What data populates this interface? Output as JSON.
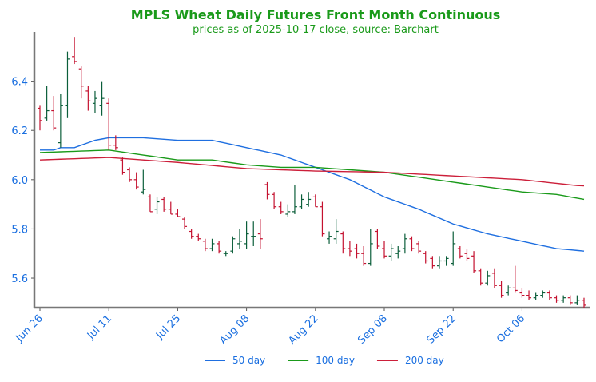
{
  "chart_data": {
    "type": "ohlc",
    "title": "MPLS Wheat Daily Futures Front Month Continuous",
    "subtitle": "prices as of 2025-10-17 close, source: Barchart",
    "title_color": "#1a9a1a",
    "categories": [
      "Jun 26",
      null,
      null,
      null,
      null,
      null,
      null,
      null,
      null,
      null,
      "Jul 11",
      null,
      null,
      null,
      null,
      null,
      null,
      null,
      null,
      null,
      "Jul 25",
      null,
      null,
      null,
      null,
      null,
      null,
      null,
      null,
      null,
      "Aug 08",
      null,
      null,
      null,
      null,
      null,
      null,
      null,
      null,
      null,
      "Aug 22",
      null,
      null,
      null,
      null,
      null,
      null,
      null,
      null,
      null,
      "Sep 08",
      null,
      null,
      null,
      null,
      null,
      null,
      null,
      null,
      null,
      "Sep 22",
      null,
      null,
      null,
      null,
      null,
      null,
      null,
      null,
      null,
      "Oct 06",
      null,
      null,
      null,
      null,
      null,
      null,
      null,
      null,
      null
    ],
    "open": [
      6.29,
      6.25,
      6.28,
      6.15,
      6.3,
      6.5,
      6.45,
      6.36,
      6.31,
      6.3,
      6.31,
      6.14,
      6.08,
      6.04,
      6.0,
      5.95,
      5.93,
      5.88,
      5.92,
      5.88,
      5.86,
      5.84,
      5.79,
      5.77,
      5.75,
      5.72,
      5.74,
      5.7,
      5.71,
      5.74,
      5.74,
      5.77,
      5.78,
      5.98,
      5.94,
      5.89,
      5.86,
      5.87,
      5.89,
      5.9,
      5.93,
      5.89,
      5.76,
      5.76,
      5.78,
      5.72,
      5.72,
      5.7,
      5.66,
      5.79,
      5.72,
      5.69,
      5.7,
      5.72,
      5.76,
      5.74,
      5.7,
      5.68,
      5.65,
      5.67,
      5.66,
      5.72,
      5.7,
      5.69,
      5.63,
      5.58,
      5.62,
      5.57,
      5.54,
      5.56,
      5.54,
      5.53,
      5.52,
      5.53,
      5.54,
      5.52,
      5.51,
      5.52,
      5.5,
      5.51
    ],
    "high": [
      6.3,
      6.38,
      6.34,
      6.35,
      6.52,
      6.58,
      6.46,
      6.38,
      6.36,
      6.4,
      6.33,
      6.18,
      6.09,
      6.05,
      6.03,
      6.04,
      5.94,
      5.93,
      5.93,
      5.91,
      5.88,
      5.85,
      5.8,
      5.78,
      5.76,
      5.76,
      5.75,
      5.71,
      5.77,
      5.8,
      5.83,
      5.83,
      5.84,
      5.99,
      5.95,
      5.91,
      5.9,
      5.98,
      5.94,
      5.95,
      5.94,
      5.91,
      5.79,
      5.84,
      5.79,
      5.75,
      5.74,
      5.73,
      5.8,
      5.8,
      5.75,
      5.74,
      5.73,
      5.78,
      5.77,
      5.75,
      5.71,
      5.69,
      5.69,
      5.69,
      5.79,
      5.73,
      5.72,
      5.71,
      5.64,
      5.63,
      5.64,
      5.59,
      5.57,
      5.65,
      5.56,
      5.55,
      5.54,
      5.55,
      5.55,
      5.53,
      5.53,
      5.53,
      5.53,
      5.52
    ],
    "low": [
      6.2,
      6.24,
      6.2,
      6.13,
      6.25,
      6.47,
      6.33,
      6.28,
      6.27,
      6.26,
      6.12,
      6.12,
      6.02,
      5.99,
      5.96,
      5.94,
      5.87,
      5.86,
      5.87,
      5.86,
      5.85,
      5.8,
      5.76,
      5.75,
      5.71,
      5.71,
      5.7,
      5.69,
      5.7,
      5.72,
      5.72,
      5.73,
      5.72,
      5.92,
      5.88,
      5.86,
      5.85,
      5.86,
      5.88,
      5.89,
      5.89,
      5.77,
      5.74,
      5.74,
      5.7,
      5.69,
      5.68,
      5.65,
      5.65,
      5.72,
      5.68,
      5.67,
      5.68,
      5.7,
      5.71,
      5.7,
      5.66,
      5.64,
      5.64,
      5.65,
      5.65,
      5.68,
      5.67,
      5.62,
      5.57,
      5.57,
      5.56,
      5.52,
      5.53,
      5.54,
      5.52,
      5.51,
      5.51,
      5.52,
      5.51,
      5.5,
      5.5,
      5.49,
      5.49,
      5.48
    ],
    "close": [
      6.24,
      6.28,
      6.21,
      6.3,
      6.49,
      6.48,
      6.38,
      6.32,
      6.33,
      6.33,
      6.14,
      6.13,
      6.03,
      6.0,
      5.97,
      5.96,
      5.87,
      5.91,
      5.88,
      5.86,
      5.85,
      5.81,
      5.77,
      5.76,
      5.72,
      5.74,
      5.71,
      5.7,
      5.76,
      5.75,
      5.78,
      5.77,
      5.76,
      5.94,
      5.89,
      5.87,
      5.87,
      5.89,
      5.92,
      5.92,
      5.89,
      5.78,
      5.77,
      5.79,
      5.72,
      5.71,
      5.7,
      5.66,
      5.74,
      5.73,
      5.69,
      5.72,
      5.71,
      5.76,
      5.72,
      5.71,
      5.67,
      5.65,
      5.67,
      5.68,
      5.74,
      5.69,
      5.68,
      5.63,
      5.58,
      5.61,
      5.57,
      5.53,
      5.56,
      5.55,
      5.53,
      5.52,
      5.53,
      5.54,
      5.52,
      5.51,
      5.52,
      5.5,
      5.51,
      5.49
    ],
    "up_color": "#0b5e3a",
    "down_color": "#c4112f",
    "series": [
      {
        "name": "50 day",
        "color": "#1f6fe0",
        "values": [
          6.12,
          6.12,
          6.12,
          6.13,
          6.13,
          6.13,
          6.14,
          6.15,
          6.16,
          6.165,
          6.17,
          6.17,
          6.17,
          6.17,
          6.17,
          6.17,
          6.168,
          6.166,
          6.164,
          6.162,
          6.16,
          6.16,
          6.16,
          6.16,
          6.16,
          6.16,
          6.154,
          6.148,
          6.142,
          6.136,
          6.13,
          6.124,
          6.118,
          6.112,
          6.106,
          6.1,
          6.09,
          6.08,
          6.07,
          6.06,
          6.05,
          6.04,
          6.03,
          6.02,
          6.01,
          6.0,
          5.986,
          5.972,
          5.958,
          5.944,
          5.93,
          5.92,
          5.91,
          5.9,
          5.89,
          5.88,
          5.868,
          5.856,
          5.844,
          5.832,
          5.82,
          5.812,
          5.804,
          5.796,
          5.788,
          5.78,
          5.774,
          5.768,
          5.762,
          5.756,
          5.75,
          5.744,
          5.738,
          5.732,
          5.726,
          5.72,
          5.7175,
          5.715,
          5.7125,
          5.71
        ]
      },
      {
        "name": "100 day",
        "color": "#1a9a1a",
        "values": [
          6.11,
          6.111,
          6.112,
          6.113,
          6.114,
          6.115,
          6.116,
          6.117,
          6.118,
          6.119,
          6.12,
          6.116,
          6.112,
          6.108,
          6.104,
          6.1,
          6.096,
          6.092,
          6.088,
          6.084,
          6.08,
          6.08,
          6.08,
          6.08,
          6.08,
          6.08,
          6.076,
          6.072,
          6.068,
          6.064,
          6.06,
          6.058,
          6.056,
          6.054,
          6.052,
          6.05,
          6.05,
          6.05,
          6.05,
          6.05,
          6.05,
          6.048,
          6.046,
          6.044,
          6.042,
          6.04,
          6.038,
          6.036,
          6.034,
          6.032,
          6.03,
          6.026,
          6.022,
          6.018,
          6.014,
          6.01,
          6.006,
          6.002,
          5.998,
          5.994,
          5.99,
          5.986,
          5.982,
          5.978,
          5.974,
          5.97,
          5.966,
          5.962,
          5.958,
          5.954,
          5.95,
          5.948,
          5.946,
          5.944,
          5.942,
          5.94,
          5.935,
          5.93,
          5.925,
          5.92
        ]
      },
      {
        "name": "200 day",
        "color": "#cc1f3a",
        "values": [
          6.08,
          6.081,
          6.082,
          6.083,
          6.084,
          6.085,
          6.086,
          6.087,
          6.088,
          6.089,
          6.09,
          6.088,
          6.086,
          6.084,
          6.082,
          6.08,
          6.078,
          6.076,
          6.074,
          6.072,
          6.07,
          6.0675,
          6.065,
          6.0625,
          6.06,
          6.0575,
          6.055,
          6.0525,
          6.05,
          6.0475,
          6.045,
          6.044,
          6.043,
          6.042,
          6.041,
          6.04,
          6.039,
          6.038,
          6.037,
          6.036,
          6.035,
          6.0345,
          6.034,
          6.0335,
          6.033,
          6.0325,
          6.032,
          6.0315,
          6.031,
          6.0305,
          6.03,
          6.0285,
          6.027,
          6.0255,
          6.024,
          6.0225,
          6.021,
          6.0195,
          6.018,
          6.0165,
          6.015,
          6.0135,
          6.012,
          6.0105,
          6.009,
          6.0075,
          6.006,
          6.0045,
          6.003,
          6.0015,
          6.0,
          5.997,
          5.994,
          5.991,
          5.988,
          5.985,
          5.982,
          5.979,
          5.976,
          5.975
        ]
      }
    ],
    "ylim": [
      5.48,
      6.6
    ],
    "yticks": [
      5.6,
      5.8,
      {
        "value": 6,
        "label": "6.0"
      },
      6.2,
      6.4
    ],
    "grid": false,
    "legend": "bottom"
  }
}
